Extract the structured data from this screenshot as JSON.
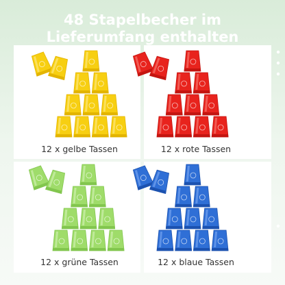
{
  "header": {
    "title": [
      "48 Stapelbecher im",
      "Lieferumfang enthalten"
    ]
  },
  "panels": [
    {
      "label": "12 x gelbe Tassen"
    },
    {
      "label": "12 x rote Tassen"
    },
    {
      "label": "12 x grüne Tassen"
    },
    {
      "label": "12 x blaue Tassen"
    }
  ]
}
